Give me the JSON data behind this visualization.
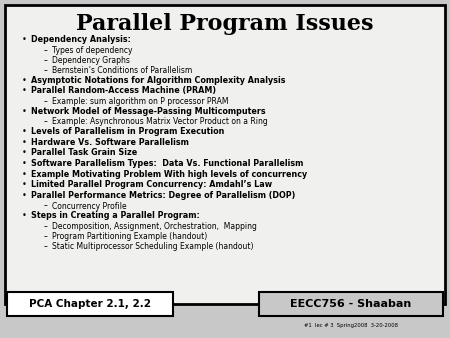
{
  "title": "Parallel Program Issues",
  "title_fontsize": 16,
  "background_color": "#c8c8c8",
  "slide_bg": "#f0f0ee",
  "border_color": "#000000",
  "content": [
    {
      "level": 1,
      "text": "Dependency Analysis:",
      "bold": true
    },
    {
      "level": 2,
      "text": "Types of dependency",
      "bold": false
    },
    {
      "level": 2,
      "text": "Dependency Graphs",
      "bold": false
    },
    {
      "level": 2,
      "text": "Bernstein’s Conditions of Parallelism",
      "bold": false
    },
    {
      "level": 1,
      "text": "Asymptotic Notations for Algorithm Complexity Analysis",
      "bold": true
    },
    {
      "level": 1,
      "text": "Parallel Random-Access Machine (PRAM)",
      "bold": true
    },
    {
      "level": 2,
      "text": "Example: sum algorithm on P processor PRAM",
      "bold": false
    },
    {
      "level": 1,
      "text": "Network Model of Message-Passing Multicomputers",
      "bold": true
    },
    {
      "level": 2,
      "text": "Example: Asynchronous Matrix Vector Product on a Ring",
      "bold": false
    },
    {
      "level": 1,
      "text": "Levels of Parallelism in Program Execution",
      "bold": true
    },
    {
      "level": 1,
      "text": "Hardware Vs. Software Parallelism",
      "bold": true
    },
    {
      "level": 1,
      "text": "Parallel Task Grain Size",
      "bold": true
    },
    {
      "level": 1,
      "text": "Software Parallelism Types:  Data Vs. Functional Parallelism",
      "bold": true
    },
    {
      "level": 1,
      "text": "Example Motivating Problem With high levels of concurrency",
      "bold": true
    },
    {
      "level": 1,
      "text": "Limited Parallel Program Concurrency: Amdahl’s Law",
      "bold": true
    },
    {
      "level": 1,
      "text": "Parallel Performance Metrics: Degree of Parallelism (DOP)",
      "bold": true
    },
    {
      "level": 2,
      "text": "Concurrency Profile",
      "bold": false
    },
    {
      "level": 1,
      "text": "Steps in Creating a Parallel Program:",
      "bold": true
    },
    {
      "level": 2,
      "text": "Decomposition, Assignment, Orchestration,  Mapping",
      "bold": false
    },
    {
      "level": 2,
      "text": "Program Partitioning Example (handout)",
      "bold": false
    },
    {
      "level": 2,
      "text": "Static Multiprocessor Scheduling Example (handout)",
      "bold": false
    }
  ],
  "footer_left": "PCA Chapter 2.1, 2.2",
  "footer_right": "EECC756 - Shaaban",
  "footer_sub": "#1  lec # 3  Spring2008  3-20-2008",
  "text_color": "#000000"
}
